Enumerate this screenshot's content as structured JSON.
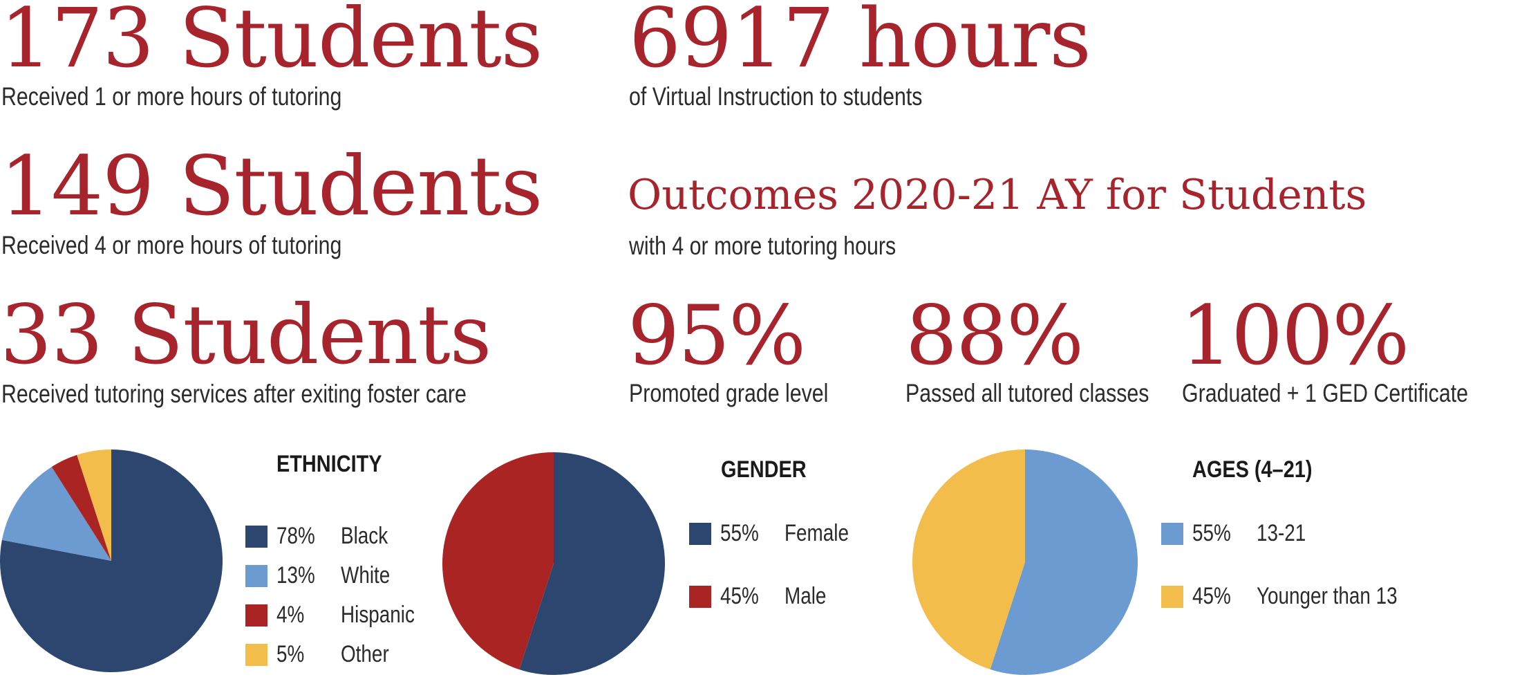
{
  "stats": [
    {
      "big": "173 Students",
      "sub": "Received 1 or more hours of tutoring"
    },
    {
      "big": "149 Students",
      "sub": "Received 4 or more hours of tutoring"
    },
    {
      "big": "33 Students",
      "sub": "Received tutoring services after exiting foster care"
    },
    {
      "big": "6917 hours",
      "sub": "of Virtual Instruction to students"
    }
  ],
  "outcomes": {
    "title": "Outcomes 2020-21 AY for Students",
    "subtitle": "with 4 or more tutoring hours",
    "items": [
      {
        "value": "95%",
        "label": "Promoted grade level"
      },
      {
        "value": "88%",
        "label": "Passed all tutored classes"
      },
      {
        "value": "100%",
        "label": "Graduated + 1 GED Certificate"
      }
    ]
  },
  "colors": {
    "accent": "#a8242d",
    "navy": "#2d4670",
    "light_blue": "#6b9bd0",
    "red": "#aa2424",
    "yellow": "#f2bd4a"
  },
  "chart_data": [
    {
      "type": "pie",
      "title": "ETHNICITY",
      "slices": [
        {
          "label": "Black",
          "value": 78,
          "display": "78%",
          "color": "#2d4670"
        },
        {
          "label": "White",
          "value": 13,
          "display": "13%",
          "color": "#6b9bd0"
        },
        {
          "label": "Hispanic",
          "value": 4,
          "display": "4%",
          "color": "#aa2424"
        },
        {
          "label": "Other",
          "value": 5,
          "display": "5%",
          "color": "#f2bd4a"
        }
      ],
      "legend": "right"
    },
    {
      "type": "pie",
      "title": "GENDER",
      "slices": [
        {
          "label": "Female",
          "value": 55,
          "display": "55%",
          "color": "#2d4670"
        },
        {
          "label": "Male",
          "value": 45,
          "display": "45%",
          "color": "#aa2424"
        }
      ],
      "legend": "right"
    },
    {
      "type": "pie",
      "title": "AGES (4–21)",
      "slices": [
        {
          "label": "13-21",
          "value": 55,
          "display": "55%",
          "color": "#6b9bd0"
        },
        {
          "label": "Younger than 13",
          "value": 45,
          "display": "45%",
          "color": "#f2bd4a"
        }
      ],
      "legend": "right"
    }
  ]
}
